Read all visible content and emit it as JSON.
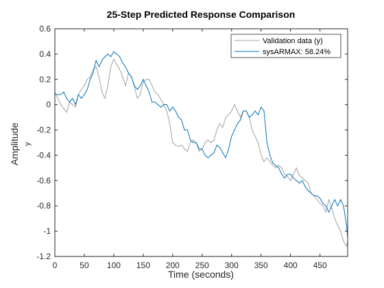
{
  "chart_data": {
    "type": "line",
    "title": "25-Step Predicted Response Comparison",
    "xlabel": "Time (seconds)",
    "ylabel": "Amplitude",
    "ylabel_sub": "y",
    "xlim": [
      0,
      497
    ],
    "ylim": [
      -1.2,
      0.6
    ],
    "xticks": [
      0,
      50,
      100,
      150,
      200,
      250,
      300,
      350,
      400,
      450
    ],
    "yticks": [
      0.6,
      0.4,
      0.2,
      0,
      -0.2,
      -0.4,
      -0.6,
      -0.8,
      -1,
      -1.2
    ],
    "xtick_labels": [
      "0",
      "50",
      "100",
      "150",
      "200",
      "250",
      "300",
      "350",
      "400",
      "450"
    ],
    "ytick_labels": [
      "0.6",
      "0.4",
      "0.2",
      "0",
      "-0.2",
      "-0.4",
      "-0.6",
      "-0.8",
      "-1",
      "-1.2"
    ],
    "grid": false,
    "legend_position": "top-right",
    "series": [
      {
        "name": "Validation data (y)",
        "color": "#a0a0a0",
        "x": [
          0,
          5,
          10,
          15,
          20,
          25,
          30,
          35,
          40,
          45,
          50,
          55,
          60,
          65,
          70,
          75,
          80,
          85,
          90,
          95,
          100,
          105,
          110,
          115,
          120,
          125,
          130,
          135,
          140,
          145,
          150,
          155,
          160,
          165,
          170,
          175,
          180,
          185,
          190,
          195,
          200,
          205,
          210,
          215,
          220,
          225,
          230,
          235,
          240,
          245,
          250,
          255,
          260,
          265,
          270,
          275,
          280,
          285,
          290,
          295,
          300,
          305,
          310,
          315,
          320,
          325,
          330,
          335,
          340,
          345,
          350,
          355,
          360,
          365,
          370,
          375,
          380,
          385,
          390,
          395,
          400,
          405,
          410,
          415,
          420,
          425,
          430,
          435,
          440,
          445,
          450,
          455,
          460,
          465,
          470,
          475,
          480,
          485,
          490,
          495,
          497
        ],
        "y": [
          0.1,
          0.05,
          0.0,
          -0.03,
          -0.06,
          0.02,
          0.0,
          -0.02,
          0.08,
          0.12,
          0.15,
          0.2,
          0.22,
          0.28,
          0.3,
          0.22,
          0.1,
          0.05,
          0.15,
          0.3,
          0.36,
          0.32,
          0.28,
          0.22,
          0.15,
          0.25,
          0.22,
          0.14,
          0.05,
          0.08,
          0.18,
          0.2,
          0.2,
          0.15,
          0.1,
          0.08,
          0.04,
          0.0,
          -0.05,
          -0.15,
          -0.3,
          -0.32,
          -0.33,
          -0.32,
          -0.35,
          -0.37,
          -0.3,
          -0.28,
          -0.3,
          -0.37,
          -0.35,
          -0.3,
          -0.28,
          -0.3,
          -0.28,
          -0.2,
          -0.15,
          -0.18,
          -0.1,
          -0.08,
          -0.05,
          0.0,
          -0.05,
          -0.1,
          -0.05,
          -0.05,
          -0.1,
          -0.2,
          -0.25,
          -0.3,
          -0.4,
          -0.45,
          -0.42,
          -0.45,
          -0.48,
          -0.5,
          -0.48,
          -0.5,
          -0.55,
          -0.57,
          -0.6,
          -0.55,
          -0.5,
          -0.56,
          -0.58,
          -0.6,
          -0.62,
          -0.7,
          -0.72,
          -0.75,
          -0.78,
          -0.8,
          -0.85,
          -0.75,
          -0.82,
          -0.9,
          -0.95,
          -1.0,
          -1.08,
          -1.12,
          -1.08
        ]
      },
      {
        "name": "sysARMAX: 58.24%",
        "color": "#0072bd",
        "x": [
          0,
          5,
          10,
          15,
          20,
          25,
          30,
          35,
          40,
          45,
          50,
          55,
          60,
          65,
          70,
          75,
          80,
          85,
          90,
          95,
          100,
          105,
          110,
          115,
          120,
          125,
          130,
          135,
          140,
          145,
          150,
          155,
          160,
          165,
          170,
          175,
          180,
          185,
          190,
          195,
          200,
          205,
          210,
          215,
          220,
          225,
          230,
          235,
          240,
          245,
          250,
          255,
          260,
          265,
          270,
          275,
          280,
          285,
          290,
          295,
          300,
          305,
          310,
          315,
          320,
          325,
          330,
          335,
          340,
          345,
          350,
          355,
          360,
          365,
          370,
          375,
          380,
          385,
          390,
          395,
          400,
          405,
          410,
          415,
          420,
          425,
          430,
          435,
          440,
          445,
          450,
          455,
          460,
          465,
          470,
          475,
          480,
          485,
          490,
          495,
          497
        ],
        "y": [
          0.08,
          0.08,
          0.08,
          0.1,
          0.05,
          0.02,
          0.05,
          0.0,
          0.08,
          0.05,
          0.08,
          0.12,
          0.2,
          0.25,
          0.35,
          0.3,
          0.35,
          0.38,
          0.4,
          0.38,
          0.42,
          0.4,
          0.38,
          0.33,
          0.3,
          0.25,
          0.22,
          0.15,
          0.12,
          0.15,
          0.2,
          0.15,
          0.1,
          0.02,
          0.02,
          0.0,
          -0.02,
          0.0,
          0.0,
          -0.05,
          -0.02,
          -0.05,
          -0.1,
          -0.12,
          -0.2,
          -0.2,
          -0.28,
          -0.3,
          -0.3,
          -0.35,
          -0.35,
          -0.4,
          -0.42,
          -0.4,
          -0.38,
          -0.32,
          -0.34,
          -0.38,
          -0.42,
          -0.35,
          -0.25,
          -0.2,
          -0.15,
          -0.12,
          -0.05,
          -0.05,
          -0.1,
          -0.08,
          -0.05,
          -0.08,
          -0.02,
          -0.05,
          -0.3,
          -0.4,
          -0.46,
          -0.48,
          -0.5,
          -0.55,
          -0.58,
          -0.55,
          -0.55,
          -0.58,
          -0.6,
          -0.62,
          -0.6,
          -0.65,
          -0.68,
          -0.7,
          -0.72,
          -0.72,
          -0.74,
          -0.78,
          -0.8,
          -0.85,
          -0.8,
          -0.75,
          -0.8,
          -0.75,
          -0.8,
          -0.95,
          -1.05
        ]
      }
    ]
  }
}
